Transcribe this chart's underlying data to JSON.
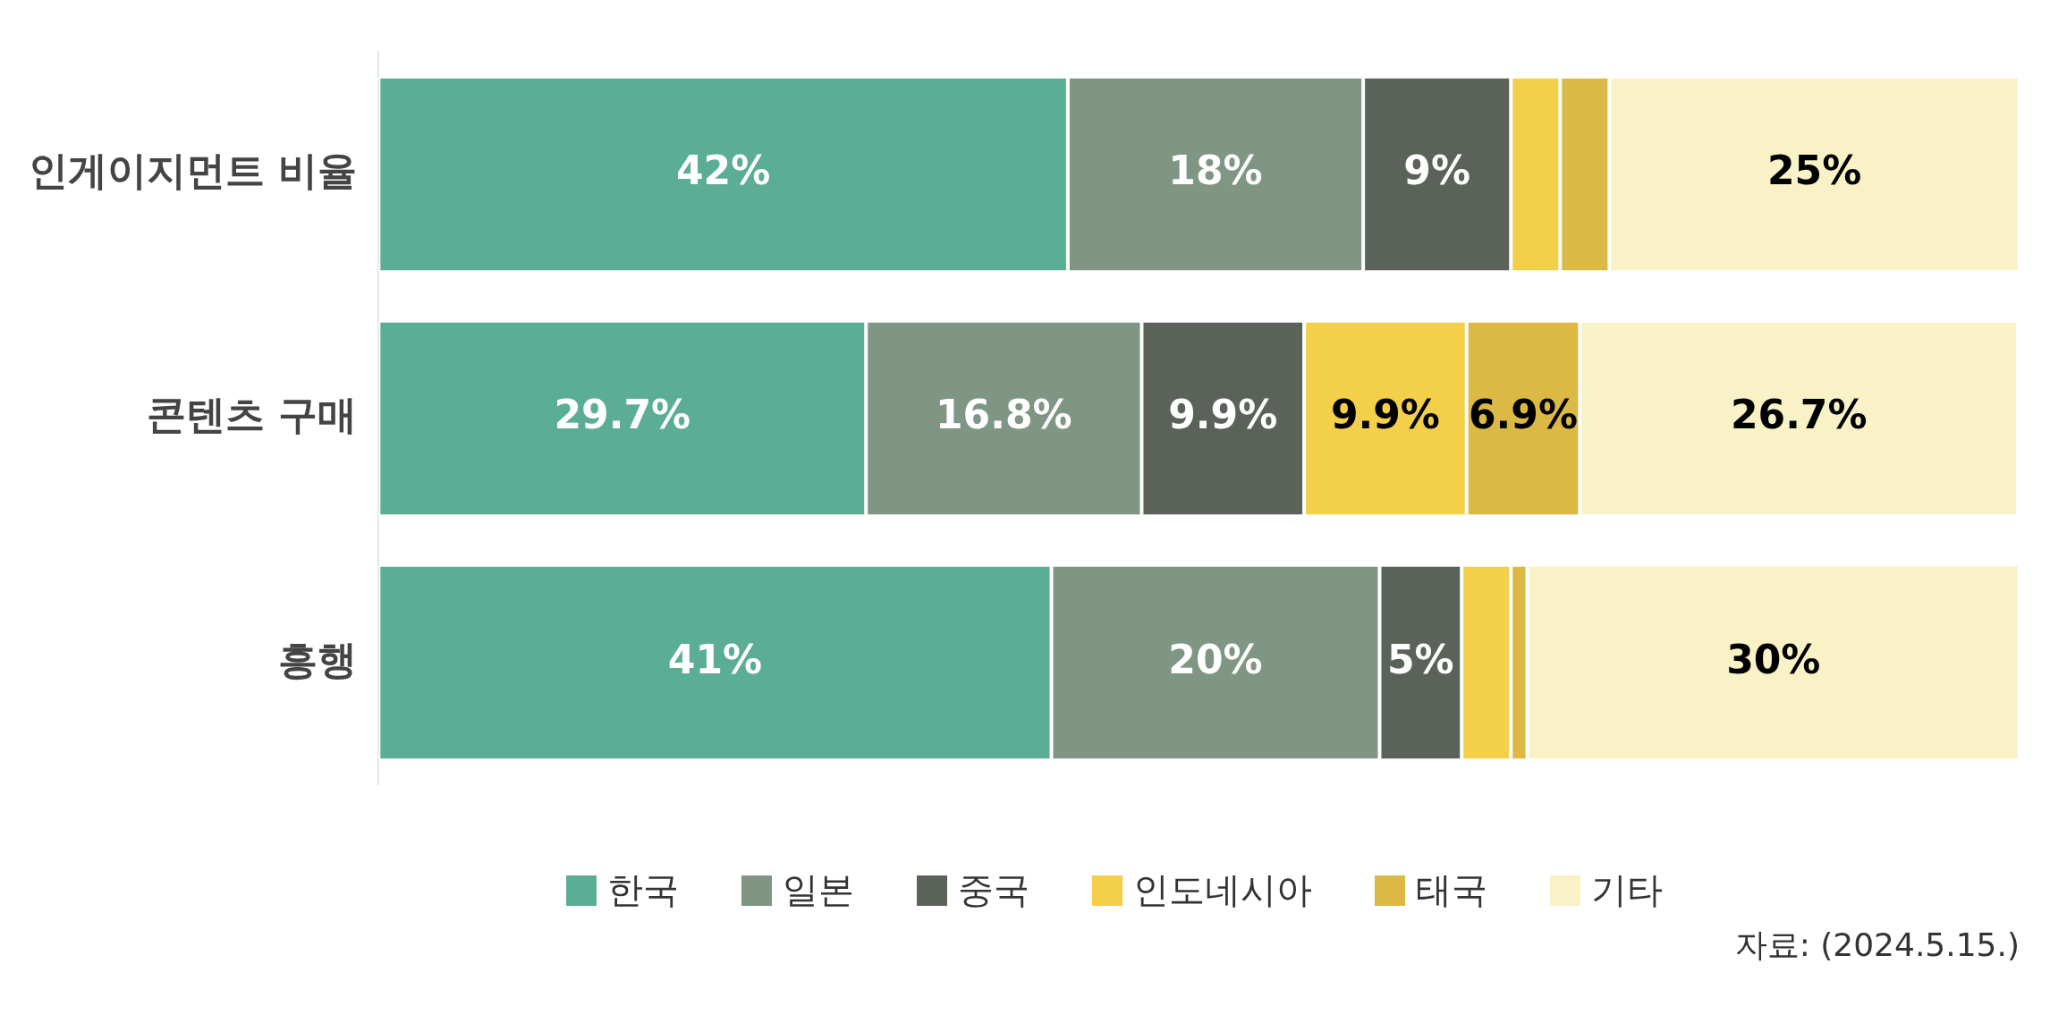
{
  "chart_data": {
    "type": "bar",
    "orientation": "horizontal",
    "stacked": true,
    "categories": [
      "인게이지먼트 비율",
      "콘텐츠 구매",
      "흥행"
    ],
    "series": [
      {
        "name": "한국",
        "color": "#5bae95",
        "values": [
          42,
          29.7,
          41
        ],
        "value_labels": [
          "42%",
          "29.7%",
          "41%"
        ]
      },
      {
        "name": "일본",
        "color": "#809684",
        "values": [
          18,
          16.8,
          20
        ],
        "value_labels": [
          "18%",
          "16.8%",
          "20%"
        ]
      },
      {
        "name": "중국",
        "color": "#5b6259",
        "values": [
          9,
          9.9,
          5
        ],
        "value_labels": [
          "9%",
          "9.9%",
          "5%"
        ]
      },
      {
        "name": "인도네시아",
        "color": "#f4cf4a",
        "values": [
          3,
          9.9,
          3
        ],
        "value_labels": [
          null,
          "9.9%",
          null
        ]
      },
      {
        "name": "태국",
        "color": "#dbb944",
        "values": [
          3,
          6.9,
          1
        ],
        "value_labels": [
          null,
          "6.9%",
          null
        ]
      },
      {
        "name": "기타",
        "color": "#f8f2c6",
        "values": [
          25,
          26.7,
          30
        ],
        "value_labels": [
          "25%",
          "26.7%",
          "30%"
        ]
      }
    ],
    "xlim": [
      0,
      100
    ],
    "tick_labels": "y",
    "legend": "bottom",
    "grid": false,
    "annotations": [
      "자료: (2024.5.15.)"
    ]
  }
}
